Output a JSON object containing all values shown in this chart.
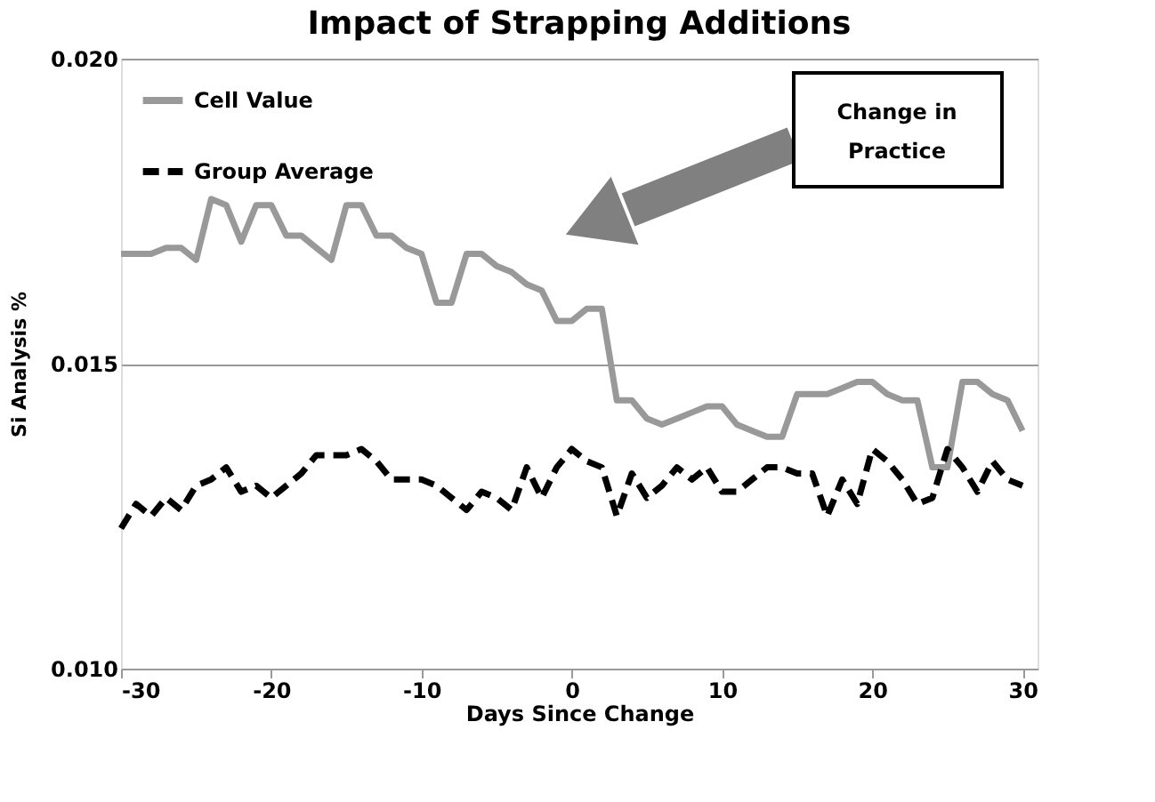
{
  "chart_data": {
    "type": "line",
    "title": "Impact of Strapping Additions",
    "xlabel": "Days Since Change",
    "ylabel": "Si Analysis  %",
    "x": [
      -30,
      -29,
      -28,
      -27,
      -26,
      -25,
      -24,
      -23,
      -22,
      -21,
      -20,
      -19,
      -18,
      -17,
      -16,
      -15,
      -14,
      -13,
      -12,
      -11,
      -10,
      -9,
      -8,
      -7,
      -6,
      -5,
      -4,
      -3,
      -2,
      -1,
      0,
      1,
      2,
      3,
      4,
      5,
      6,
      7,
      8,
      9,
      10,
      11,
      12,
      13,
      14,
      15,
      16,
      17,
      18,
      19,
      20,
      21,
      22,
      23,
      24,
      25,
      26,
      27,
      28,
      29,
      30
    ],
    "series": [
      {
        "name": "Cell Value",
        "color": "#999999",
        "line_style": "solid",
        "values": [
          0.0168,
          0.0168,
          0.0168,
          0.0169,
          0.0169,
          0.0167,
          0.0177,
          0.0176,
          0.017,
          0.0176,
          0.0176,
          0.0171,
          0.0171,
          0.0169,
          0.0167,
          0.0176,
          0.0176,
          0.0171,
          0.0171,
          0.0169,
          0.0168,
          0.016,
          0.016,
          0.0168,
          0.0168,
          0.0166,
          0.0165,
          0.0163,
          0.0162,
          0.0157,
          0.0157,
          0.0159,
          0.0159,
          0.0144,
          0.0144,
          0.0141,
          0.014,
          0.0141,
          0.0142,
          0.0143,
          0.0143,
          0.014,
          0.0139,
          0.0138,
          0.0138,
          0.0145,
          0.0145,
          0.0145,
          0.0146,
          0.0147,
          0.0147,
          0.0145,
          0.0144,
          0.0144,
          0.0133,
          0.0133,
          0.0147,
          0.0147,
          0.0145,
          0.0144,
          0.0139
        ]
      },
      {
        "name": "Group Average",
        "color": "#000000",
        "line_style": "dashed",
        "values": [
          0.0123,
          0.0127,
          0.0125,
          0.0128,
          0.0126,
          0.013,
          0.0131,
          0.0133,
          0.0129,
          0.013,
          0.0128,
          0.013,
          0.0132,
          0.0135,
          0.0135,
          0.0135,
          0.0136,
          0.0134,
          0.0131,
          0.0131,
          0.0131,
          0.013,
          0.0128,
          0.0126,
          0.0129,
          0.0128,
          0.0126,
          0.0133,
          0.0128,
          0.0133,
          0.0136,
          0.0134,
          0.0133,
          0.0125,
          0.0132,
          0.0128,
          0.013,
          0.0133,
          0.0131,
          0.0133,
          0.0129,
          0.0129,
          0.0131,
          0.0133,
          0.0133,
          0.0132,
          0.0132,
          0.0125,
          0.0131,
          0.0127,
          0.0136,
          0.0134,
          0.0131,
          0.0127,
          0.0128,
          0.0136,
          0.0133,
          0.0129,
          0.0134,
          0.0131,
          0.013
        ]
      }
    ],
    "xlim": [
      -30,
      31
    ],
    "xticks": [
      -30,
      -20,
      -10,
      0,
      10,
      20,
      30
    ],
    "ylim": [
      0.01,
      0.02
    ],
    "yticks": [
      {
        "value": 0.01,
        "label": "0.010"
      },
      {
        "value": 0.015,
        "label": "0.015"
      },
      {
        "value": 0.02,
        "label": "0.020"
      }
    ],
    "grid": "y",
    "legend": "top left",
    "marker": "none",
    "annotations": [
      "Change in\nPractice"
    ]
  }
}
